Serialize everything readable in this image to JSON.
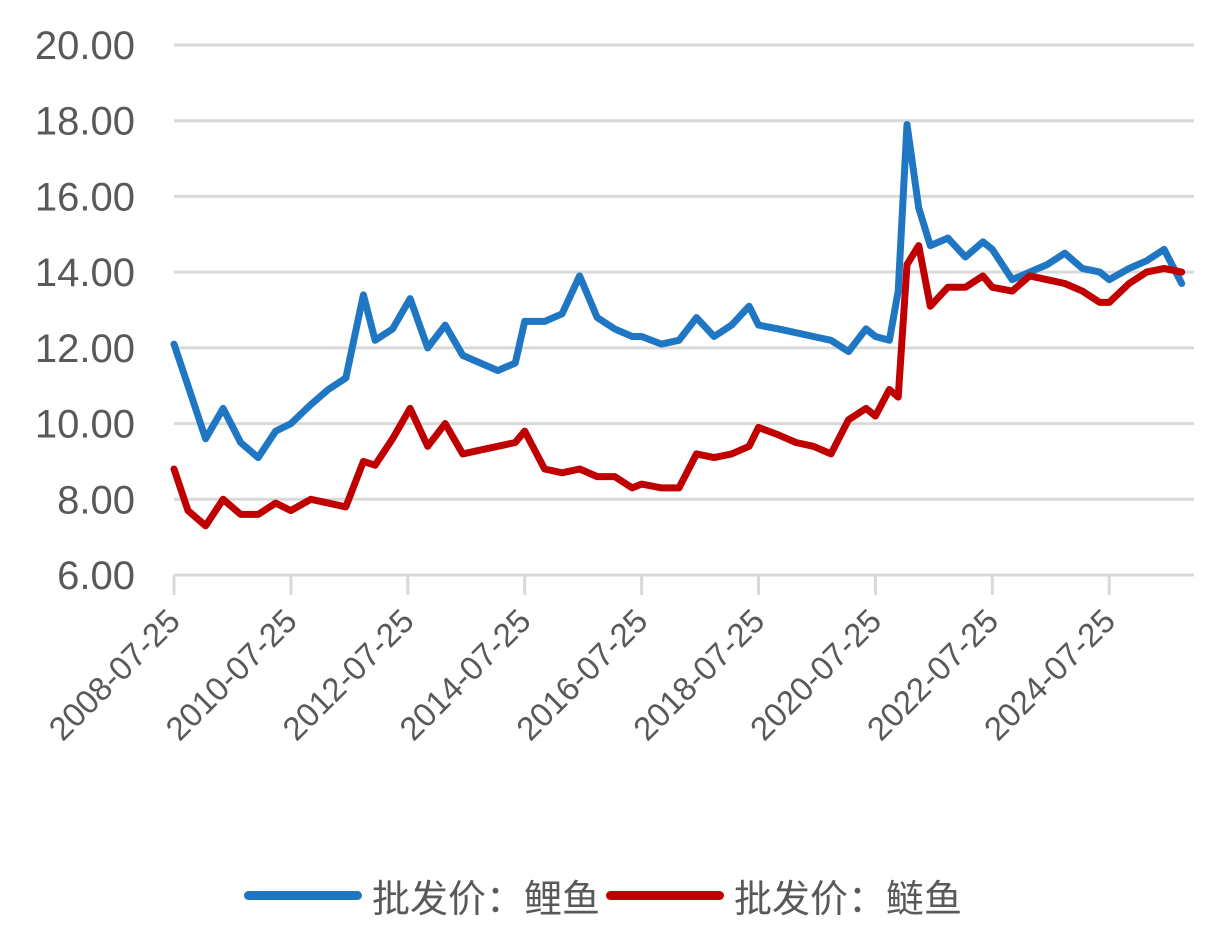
{
  "chart_data": {
    "type": "line",
    "title": "",
    "xlabel": "",
    "ylabel": "",
    "ylim": [
      6,
      20
    ],
    "yticks": [
      "20.00",
      "18.00",
      "16.00",
      "14.00",
      "12.00",
      "10.00",
      "8.00",
      "6.00"
    ],
    "xticks": [
      "2008-07-25",
      "2010-07-25",
      "2012-07-25",
      "2014-07-25",
      "2016-07-25",
      "2018-07-25",
      "2020-07-25",
      "2022-07-25",
      "2024-07-25"
    ],
    "grid": "horizontal",
    "legend_position": "bottom",
    "x": [
      2008.56,
      2008.8,
      2009.1,
      2009.4,
      2009.7,
      2010.0,
      2010.3,
      2010.56,
      2010.9,
      2011.2,
      2011.5,
      2011.8,
      2012.0,
      2012.3,
      2012.6,
      2012.9,
      2013.2,
      2013.5,
      2013.8,
      2014.1,
      2014.4,
      2014.56,
      2014.9,
      2015.2,
      2015.5,
      2015.8,
      2016.1,
      2016.4,
      2016.56,
      2016.9,
      2017.2,
      2017.5,
      2017.8,
      2018.1,
      2018.4,
      2018.56,
      2018.9,
      2019.2,
      2019.5,
      2019.8,
      2020.1,
      2020.4,
      2020.56,
      2020.8,
      2020.95,
      2021.1,
      2021.3,
      2021.5,
      2021.8,
      2022.1,
      2022.4,
      2022.56,
      2022.9,
      2023.2,
      2023.5,
      2023.8,
      2024.1,
      2024.4,
      2024.56,
      2024.9,
      2025.2,
      2025.5,
      2025.8
    ],
    "series": [
      {
        "name": "批发价：鲤鱼",
        "color": "#1f77c4",
        "values": [
          12.1,
          11.0,
          9.6,
          10.4,
          9.5,
          9.1,
          9.8,
          10.0,
          10.5,
          10.9,
          11.2,
          13.4,
          12.2,
          12.5,
          13.3,
          12.0,
          12.6,
          11.8,
          11.6,
          11.4,
          11.6,
          12.7,
          12.7,
          12.9,
          13.9,
          12.8,
          12.5,
          12.3,
          12.3,
          12.1,
          12.2,
          12.8,
          12.3,
          12.6,
          13.1,
          12.6,
          12.5,
          12.4,
          12.3,
          12.2,
          11.9,
          12.5,
          12.3,
          12.2,
          13.5,
          17.9,
          15.7,
          14.7,
          14.9,
          14.4,
          14.8,
          14.6,
          13.8,
          14.0,
          14.2,
          14.5,
          14.1,
          14.0,
          13.8,
          14.1,
          14.3,
          14.6,
          13.7
        ]
      },
      {
        "name": "批发价：鲢鱼",
        "color": "#c00000",
        "values": [
          8.8,
          7.7,
          7.3,
          8.0,
          7.6,
          7.6,
          7.9,
          7.7,
          8.0,
          7.9,
          7.8,
          9.0,
          8.9,
          9.6,
          10.4,
          9.4,
          10.0,
          9.2,
          9.3,
          9.4,
          9.5,
          9.8,
          8.8,
          8.7,
          8.8,
          8.6,
          8.6,
          8.3,
          8.4,
          8.3,
          8.3,
          9.2,
          9.1,
          9.2,
          9.4,
          9.9,
          9.7,
          9.5,
          9.4,
          9.2,
          10.1,
          10.4,
          10.2,
          10.9,
          10.7,
          14.2,
          14.7,
          13.1,
          13.6,
          13.6,
          13.9,
          13.6,
          13.5,
          13.9,
          13.8,
          13.7,
          13.5,
          13.2,
          13.2,
          13.7,
          14.0,
          14.1,
          14.0
        ]
      }
    ]
  },
  "legend": {
    "items": [
      {
        "label": "批发价：鲤鱼",
        "color": "#1f77c4"
      },
      {
        "label": "批发价：鲢鱼",
        "color": "#c00000"
      }
    ]
  }
}
